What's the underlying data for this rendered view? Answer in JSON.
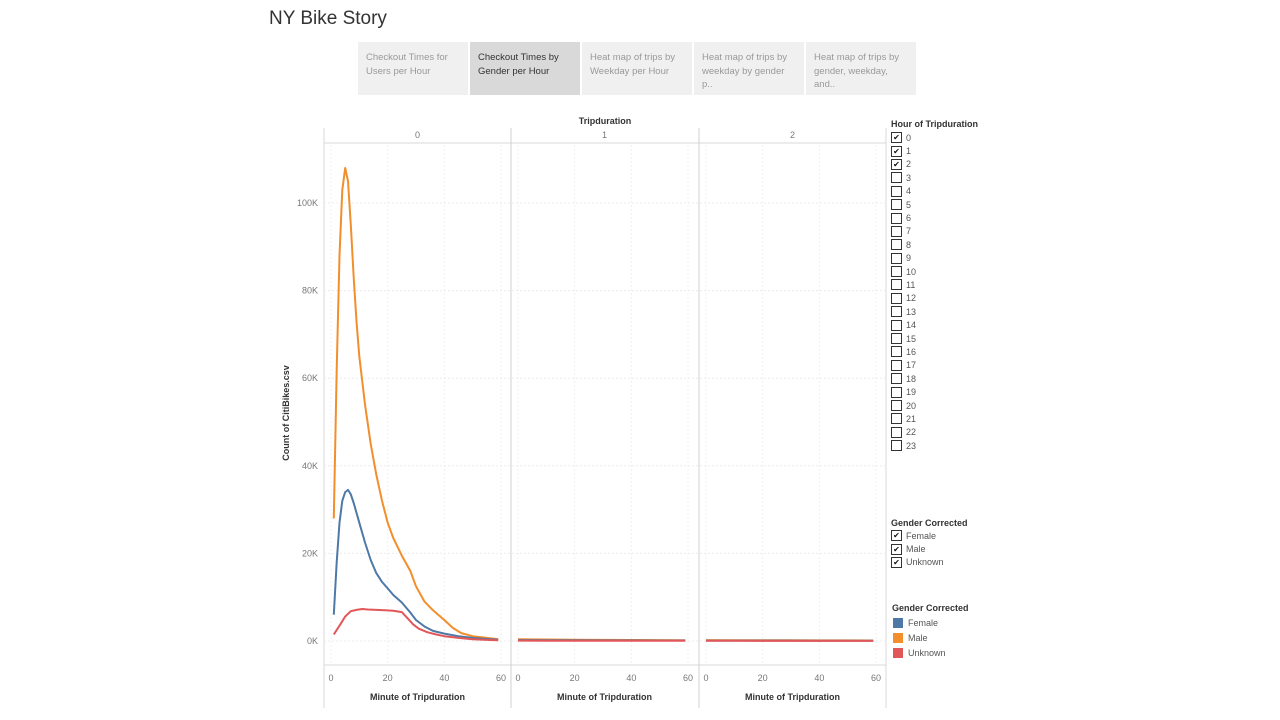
{
  "story": {
    "title": "NY Bike Story",
    "tabs": [
      {
        "label": "Checkout Times for Users per Hour",
        "active": false
      },
      {
        "label": "Checkout Times by Gender per Hour",
        "active": true
      },
      {
        "label": "Heat map of trips by Weekday per Hour",
        "active": false
      },
      {
        "label": "Heat map of trips by weekday by gender p..",
        "active": false
      },
      {
        "label": "Heat map of trips by gender, weekday, and..",
        "active": false
      }
    ]
  },
  "filters": {
    "hour": {
      "title": "Hour of Tripduration",
      "options": [
        {
          "label": "0",
          "checked": true
        },
        {
          "label": "1",
          "checked": true
        },
        {
          "label": "2",
          "checked": true
        },
        {
          "label": "3",
          "checked": false
        },
        {
          "label": "4",
          "checked": false
        },
        {
          "label": "5",
          "checked": false
        },
        {
          "label": "6",
          "checked": false
        },
        {
          "label": "7",
          "checked": false
        },
        {
          "label": "8",
          "checked": false
        },
        {
          "label": "9",
          "checked": false
        },
        {
          "label": "10",
          "checked": false
        },
        {
          "label": "11",
          "checked": false
        },
        {
          "label": "12",
          "checked": false
        },
        {
          "label": "13",
          "checked": false
        },
        {
          "label": "14",
          "checked": false
        },
        {
          "label": "15",
          "checked": false
        },
        {
          "label": "16",
          "checked": false
        },
        {
          "label": "17",
          "checked": false
        },
        {
          "label": "18",
          "checked": false
        },
        {
          "label": "19",
          "checked": false
        },
        {
          "label": "20",
          "checked": false
        },
        {
          "label": "21",
          "checked": false
        },
        {
          "label": "22",
          "checked": false
        },
        {
          "label": "23",
          "checked": false
        }
      ]
    },
    "gender": {
      "title": "Gender Corrected",
      "options": [
        {
          "label": "Female",
          "checked": true
        },
        {
          "label": "Male",
          "checked": true
        },
        {
          "label": "Unknown",
          "checked": true
        }
      ]
    }
  },
  "color_legend": {
    "title": "Gender Corrected",
    "items": [
      {
        "label": "Female",
        "color": "#4e79a7"
      },
      {
        "label": "Male",
        "color": "#f28e2b"
      },
      {
        "label": "Unknown",
        "color": "#e15759"
      }
    ]
  },
  "chart_data": {
    "type": "line",
    "column_header": "Tripduration",
    "panels": [
      "0",
      "1",
      "2"
    ],
    "xlabel": "Minute of Tripduration",
    "ylabel": "Count of CitiBikes.csv",
    "xlim": [
      0,
      60
    ],
    "ylim": [
      0,
      110000
    ],
    "x_ticks": [
      "0",
      "20",
      "40",
      "60"
    ],
    "y_ticks": [
      {
        "value": 0,
        "label": "0K"
      },
      {
        "value": 20000,
        "label": "20K"
      },
      {
        "value": 40000,
        "label": "40K"
      },
      {
        "value": 60000,
        "label": "60K"
      },
      {
        "value": 80000,
        "label": "80K"
      },
      {
        "value": 100000,
        "label": "100K"
      }
    ],
    "grid": true,
    "legend": "right",
    "series": [
      {
        "name": "Male",
        "color": "#f28e2b",
        "panel_values": [
          [
            [
              1,
              28000
            ],
            [
              2,
              62000
            ],
            [
              3,
              88000
            ],
            [
              4,
              103000
            ],
            [
              5,
              108000
            ],
            [
              6,
              105000
            ],
            [
              7,
              95000
            ],
            [
              8,
              83000
            ],
            [
              9,
              73000
            ],
            [
              10,
              65000
            ],
            [
              12,
              54000
            ],
            [
              14,
              45000
            ],
            [
              16,
              38000
            ],
            [
              18,
              32000
            ],
            [
              20,
              27000
            ],
            [
              22,
              23500
            ],
            [
              25,
              19500
            ],
            [
              28,
              16000
            ],
            [
              30,
              12500
            ],
            [
              33,
              9000
            ],
            [
              36,
              7000
            ],
            [
              40,
              4800
            ],
            [
              43,
              3000
            ],
            [
              46,
              1800
            ],
            [
              50,
              1100
            ],
            [
              55,
              700
            ],
            [
              59,
              400
            ]
          ],
          [
            [
              0,
              400
            ],
            [
              10,
              350
            ],
            [
              20,
              300
            ],
            [
              30,
              260
            ],
            [
              40,
              230
            ],
            [
              50,
              200
            ],
            [
              59,
              180
            ]
          ],
          [
            [
              0,
              200
            ],
            [
              10,
              180
            ],
            [
              20,
              160
            ],
            [
              30,
              150
            ],
            [
              40,
              140
            ],
            [
              50,
              130
            ],
            [
              59,
              120
            ]
          ]
        ]
      },
      {
        "name": "Female",
        "color": "#4e79a7",
        "panel_values": [
          [
            [
              1,
              6000
            ],
            [
              2,
              18000
            ],
            [
              3,
              27000
            ],
            [
              4,
              32000
            ],
            [
              5,
              34000
            ],
            [
              6,
              34500
            ],
            [
              7,
              33500
            ],
            [
              8,
              31500
            ],
            [
              10,
              27000
            ],
            [
              12,
              22500
            ],
            [
              14,
              18500
            ],
            [
              16,
              15500
            ],
            [
              18,
              13500
            ],
            [
              20,
              12000
            ],
            [
              22,
              10500
            ],
            [
              25,
              8800
            ],
            [
              28,
              6500
            ],
            [
              30,
              4800
            ],
            [
              33,
              3300
            ],
            [
              36,
              2300
            ],
            [
              40,
              1700
            ],
            [
              45,
              1100
            ],
            [
              50,
              700
            ],
            [
              55,
              450
            ],
            [
              59,
              300
            ]
          ],
          [
            [
              0,
              200
            ],
            [
              10,
              180
            ],
            [
              20,
              160
            ],
            [
              30,
              140
            ],
            [
              40,
              130
            ],
            [
              50,
              120
            ],
            [
              59,
              110
            ]
          ],
          [
            [
              0,
              100
            ],
            [
              10,
              90
            ],
            [
              20,
              85
            ],
            [
              30,
              80
            ],
            [
              40,
              75
            ],
            [
              50,
              70
            ],
            [
              59,
              65
            ]
          ]
        ]
      },
      {
        "name": "Unknown",
        "color": "#e15759",
        "panel_values": [
          [
            [
              1,
              1500
            ],
            [
              3,
              3500
            ],
            [
              5,
              5600
            ],
            [
              7,
              6800
            ],
            [
              9,
              7100
            ],
            [
              11,
              7300
            ],
            [
              13,
              7200
            ],
            [
              16,
              7100
            ],
            [
              19,
              7000
            ],
            [
              22,
              6900
            ],
            [
              25,
              6600
            ],
            [
              27,
              5200
            ],
            [
              29,
              3800
            ],
            [
              31,
              2800
            ],
            [
              34,
              2000
            ],
            [
              37,
              1500
            ],
            [
              40,
              1100
            ],
            [
              45,
              700
            ],
            [
              50,
              400
            ],
            [
              55,
              250
            ],
            [
              59,
              150
            ]
          ],
          [
            [
              0,
              80
            ],
            [
              10,
              70
            ],
            [
              20,
              60
            ],
            [
              30,
              55
            ],
            [
              40,
              50
            ],
            [
              50,
              45
            ],
            [
              59,
              40
            ]
          ],
          [
            [
              0,
              40
            ],
            [
              10,
              35
            ],
            [
              20,
              30
            ],
            [
              30,
              28
            ],
            [
              40,
              25
            ],
            [
              50,
              22
            ],
            [
              59,
              20
            ]
          ]
        ]
      }
    ]
  }
}
